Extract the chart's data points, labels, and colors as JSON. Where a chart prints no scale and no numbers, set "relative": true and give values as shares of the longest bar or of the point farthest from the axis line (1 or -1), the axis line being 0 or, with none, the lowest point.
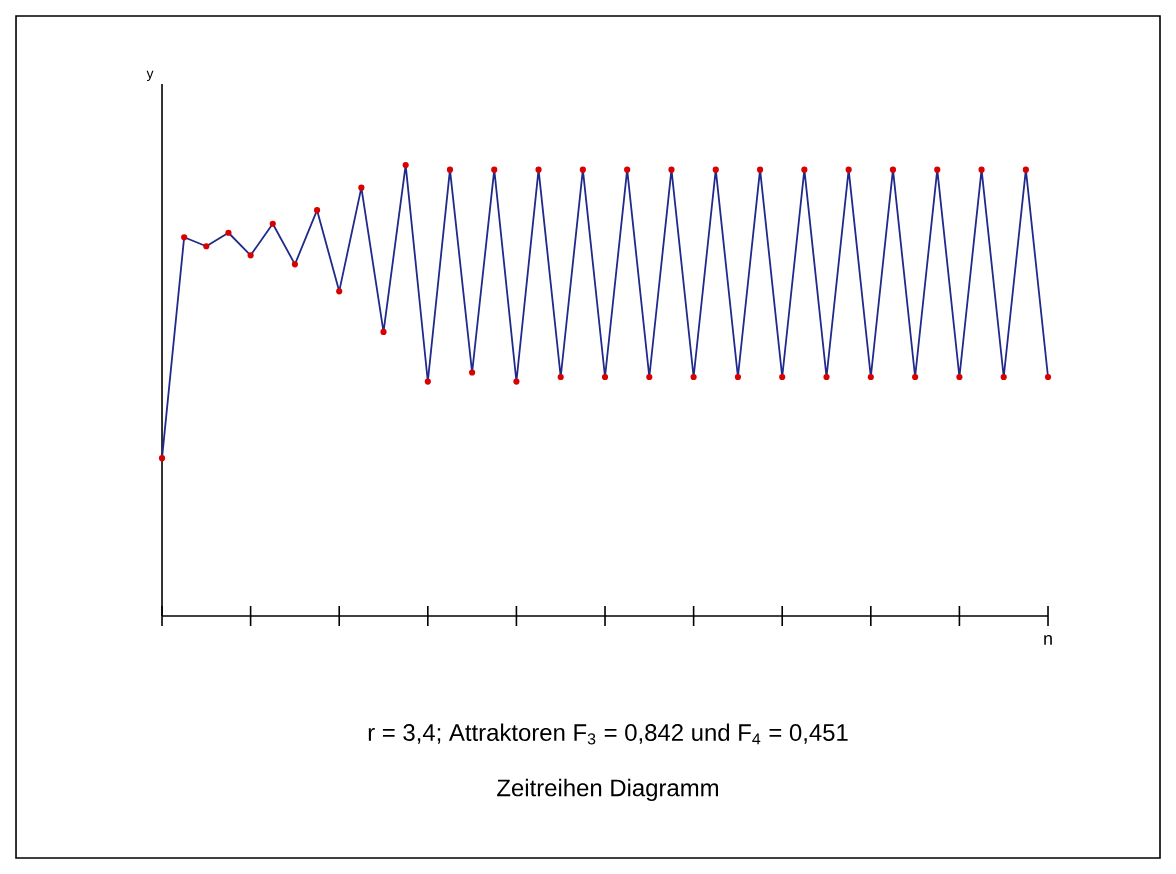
{
  "chart_data": {
    "type": "line",
    "relative": true,
    "xlabel": "n",
    "categories": [
      null,
      null,
      null,
      null,
      null,
      null,
      null,
      null,
      null,
      null,
      null,
      null,
      null,
      null,
      null,
      null,
      null,
      null,
      null,
      null,
      null,
      null,
      null,
      null,
      null,
      null,
      null,
      null,
      null,
      null,
      null,
      null,
      null,
      null,
      null,
      null,
      null,
      null,
      null,
      null,
      null
    ],
    "marker": "circle",
    "series": [
      {
        "color": "#1f2a8a",
        "values": [
          0.35,
          0.84,
          0.82,
          0.85,
          0.8,
          0.87,
          0.78,
          0.9,
          0.72,
          0.95,
          0.63,
          1,
          0.52,
          0.99,
          0.54,
          0.99,
          0.52,
          0.99,
          0.53,
          0.99,
          0.53,
          0.99,
          0.53,
          0.99,
          0.53,
          0.99,
          0.53,
          0.99,
          0.53,
          0.99,
          0.53,
          0.99,
          0.53,
          0.99,
          0.53,
          0.99,
          0.53,
          0.99,
          0.53,
          0.99,
          0.53
        ]
      }
    ],
    "annotations": [
      "y",
      "r = 3,4; Attraktoren F$_{3}$ = 0,842 und F$_{4}$ = 0,451",
      "Zeitreihen Diagramm"
    ]
  }
}
